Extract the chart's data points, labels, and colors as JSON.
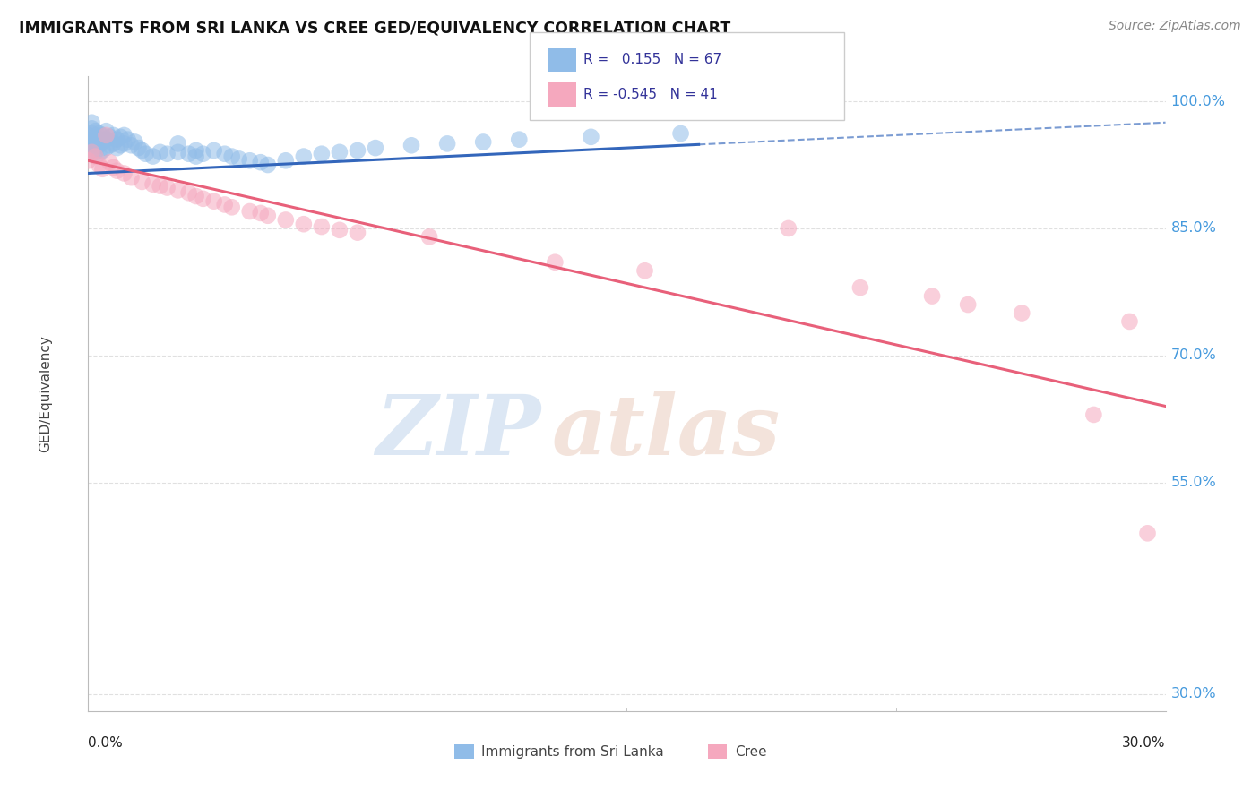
{
  "title": "IMMIGRANTS FROM SRI LANKA VS CREE GED/EQUIVALENCY CORRELATION CHART",
  "source": "Source: ZipAtlas.com",
  "ylabel": "GED/Equivalency",
  "xmin": 0.0,
  "xmax": 0.3,
  "ymin": 0.28,
  "ymax": 1.03,
  "sri_lanka_R": 0.155,
  "sri_lanka_N": 67,
  "cree_R": -0.545,
  "cree_N": 41,
  "sri_lanka_color": "#90bce8",
  "cree_color": "#f5a8be",
  "trend_sri_lanka_color": "#3366bb",
  "trend_cree_color": "#e8607a",
  "sri_lanka_points_x": [
    0.0,
    0.0,
    0.0,
    0.0,
    0.001,
    0.001,
    0.001,
    0.001,
    0.001,
    0.002,
    0.002,
    0.002,
    0.002,
    0.003,
    0.003,
    0.003,
    0.003,
    0.004,
    0.004,
    0.004,
    0.005,
    0.005,
    0.005,
    0.006,
    0.006,
    0.007,
    0.007,
    0.008,
    0.008,
    0.009,
    0.009,
    0.01,
    0.01,
    0.011,
    0.012,
    0.013,
    0.014,
    0.015,
    0.016,
    0.018,
    0.02,
    0.022,
    0.025,
    0.025,
    0.028,
    0.03,
    0.03,
    0.032,
    0.035,
    0.038,
    0.04,
    0.042,
    0.045,
    0.048,
    0.05,
    0.055,
    0.06,
    0.065,
    0.07,
    0.075,
    0.08,
    0.09,
    0.1,
    0.11,
    0.12,
    0.14,
    0.165
  ],
  "sri_lanka_points_y": [
    0.96,
    0.955,
    0.95,
    0.945,
    0.975,
    0.968,
    0.962,
    0.95,
    0.94,
    0.965,
    0.958,
    0.95,
    0.94,
    0.962,
    0.955,
    0.948,
    0.938,
    0.96,
    0.952,
    0.942,
    0.965,
    0.955,
    0.945,
    0.958,
    0.948,
    0.96,
    0.95,
    0.955,
    0.945,
    0.958,
    0.948,
    0.96,
    0.95,
    0.955,
    0.948,
    0.952,
    0.945,
    0.942,
    0.938,
    0.935,
    0.94,
    0.938,
    0.95,
    0.94,
    0.938,
    0.942,
    0.935,
    0.938,
    0.942,
    0.938,
    0.935,
    0.932,
    0.93,
    0.928,
    0.925,
    0.93,
    0.935,
    0.938,
    0.94,
    0.942,
    0.945,
    0.948,
    0.95,
    0.952,
    0.955,
    0.958,
    0.962
  ],
  "cree_points_x": [
    0.0,
    0.001,
    0.002,
    0.003,
    0.004,
    0.005,
    0.006,
    0.007,
    0.008,
    0.01,
    0.012,
    0.015,
    0.018,
    0.02,
    0.022,
    0.025,
    0.028,
    0.03,
    0.032,
    0.035,
    0.038,
    0.04,
    0.045,
    0.048,
    0.05,
    0.055,
    0.06,
    0.065,
    0.07,
    0.075,
    0.095,
    0.13,
    0.155,
    0.195,
    0.215,
    0.235,
    0.245,
    0.26,
    0.28,
    0.29,
    0.295
  ],
  "cree_points_y": [
    0.93,
    0.94,
    0.935,
    0.925,
    0.92,
    0.96,
    0.928,
    0.922,
    0.918,
    0.915,
    0.91,
    0.905,
    0.902,
    0.9,
    0.898,
    0.895,
    0.892,
    0.888,
    0.885,
    0.882,
    0.878,
    0.875,
    0.87,
    0.868,
    0.865,
    0.86,
    0.855,
    0.852,
    0.848,
    0.845,
    0.84,
    0.81,
    0.8,
    0.85,
    0.78,
    0.77,
    0.76,
    0.75,
    0.63,
    0.74,
    0.49
  ],
  "watermark_zip": "ZIP",
  "watermark_atlas": "atlas",
  "background_color": "#ffffff",
  "grid_color": "#e0e0e0",
  "ytick_vals": [
    1.0,
    0.85,
    0.7,
    0.55,
    0.3
  ],
  "ytick_labels": [
    "100.0%",
    "85.0%",
    "70.0%",
    "55.0%",
    "30.0%"
  ]
}
